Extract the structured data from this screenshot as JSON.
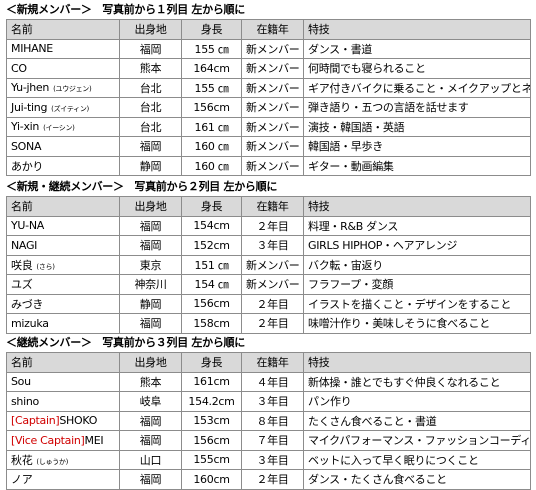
{
  "sections": [
    {
      "title": "＜新規メンバー＞　写真前から１列目 左から順に",
      "headers": {
        "name": "名前",
        "home": "出身地",
        "height": "身長",
        "year": "在籍年",
        "skill": "特技"
      },
      "rows": [
        {
          "name": "MIHANE",
          "reading": "",
          "home": "福岡",
          "height": "155 ㎝",
          "year": "新メンバー",
          "skill": "ダンス・書道"
        },
        {
          "name": "CO",
          "reading": "",
          "home": "熊本",
          "height": "164cm",
          "year": "新メンバー",
          "skill": "何時間でも寝られること"
        },
        {
          "name": "Yu-jhen",
          "reading": "(ユウジェン)",
          "home": "台北",
          "height": "155 ㎝",
          "year": "新メンバー",
          "skill": "ギア付きバイクに乗ること・メイクアップとネイル"
        },
        {
          "name": "Jui-ting",
          "reading": "(ズイティン)",
          "home": "台北",
          "height": "156cm",
          "year": "新メンバー",
          "skill": "弾き語り・五つの言語を話せます"
        },
        {
          "name": "Yi-xin",
          "reading": "(イーシン)",
          "home": "台北",
          "height": "161 ㎝",
          "year": "新メンバー",
          "skill": "演技・韓国語・英語"
        },
        {
          "name": "SONA",
          "reading": "",
          "home": "福岡",
          "height": "160 ㎝",
          "year": "新メンバー",
          "skill": "韓国語・早歩き"
        },
        {
          "name": "あかり",
          "reading": "",
          "home": "静岡",
          "height": "160 ㎝",
          "year": "新メンバー",
          "skill": "ギター・動画編集"
        }
      ]
    },
    {
      "title": "＜新規・継続メンバー＞　写真前から２列目 左から順に",
      "headers": {
        "name": "名前",
        "home": "出身地",
        "height": "身長",
        "year": "在籍年",
        "skill": "特技"
      },
      "rows": [
        {
          "name": "YU-NA",
          "reading": "",
          "home": "福岡",
          "height": "154cm",
          "year": "２年目",
          "skill": "料理・R&B ダンス"
        },
        {
          "name": "NAGI",
          "reading": "",
          "home": "福岡",
          "height": "152cm",
          "year": "３年目",
          "skill": "GIRLS HIPHOP・ヘアアレンジ"
        },
        {
          "name": "咲良",
          "reading": "(さら)",
          "home": "東京",
          "height": "151 ㎝",
          "year": "新メンバー",
          "skill": "バク転・宙返り"
        },
        {
          "name": "ユズ",
          "reading": "",
          "home": "神奈川",
          "height": "154 ㎝",
          "year": "新メンバー",
          "skill": "フラフープ・変顔"
        },
        {
          "name": "みづき",
          "reading": "",
          "home": "静岡",
          "height": "156cm",
          "year": "２年目",
          "skill": "イラストを描くこと・デザインをすること"
        },
        {
          "name": "mizuka",
          "reading": "",
          "home": "福岡",
          "height": "158cm",
          "year": "２年目",
          "skill": "味噌汁作り・美味しそうに食べること"
        }
      ]
    },
    {
      "title": "＜継続メンバー＞　写真前から３列目 左から順に",
      "headers": {
        "name": "名前",
        "home": "出身地",
        "height": "身長",
        "year": "在籍年",
        "skill": "特技"
      },
      "rows": [
        {
          "name": "Sou",
          "reading": "",
          "home": "熊本",
          "height": "161cm",
          "year": "４年目",
          "skill": "新体操・誰とでもすぐ仲良くなれること"
        },
        {
          "name": "shino",
          "reading": "",
          "home": "岐阜",
          "height": "154.2cm",
          "year": "３年目",
          "skill": "パン作り"
        },
        {
          "name": "SHOKO",
          "role": "[Captain]",
          "reading": "",
          "home": "福岡",
          "height": "153cm",
          "year": "８年目",
          "skill": "たくさん食べること・書道"
        },
        {
          "name": "MEI",
          "role": "[Vice Captain]",
          "reading": "",
          "home": "福岡",
          "height": "156cm",
          "year": "７年目",
          "skill": "マイクパフォーマンス・ファッションコーディネート"
        },
        {
          "name": "秋花",
          "reading": "(しゅうか)",
          "home": "山口",
          "height": "155cm",
          "year": "３年目",
          "skill": "ベットに入って早く眠りにつくこと"
        },
        {
          "name": "ノア",
          "reading": "",
          "home": "福岡",
          "height": "160cm",
          "year": "２年目",
          "skill": "ダンス・たくさん食べること"
        }
      ]
    }
  ],
  "colors": {
    "header_bg": "#d9d9d9",
    "border": "#8c8c8c",
    "captain": "#d00000"
  }
}
